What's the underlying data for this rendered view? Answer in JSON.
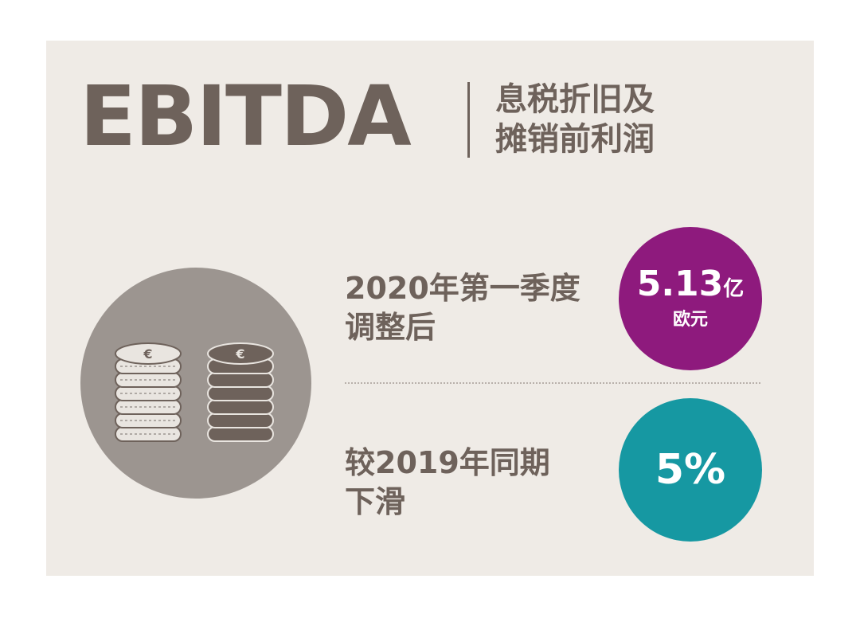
{
  "title": "EBITDA",
  "subtitle": {
    "line1": "息税折旧及",
    "line2": "摊销前利润"
  },
  "stat1": {
    "label_line1": "2020年第一季度",
    "label_line2": "调整后",
    "value": "5.13",
    "unit1": "亿",
    "unit2": "欧元"
  },
  "stat2": {
    "label_line1": "较2019年同期",
    "label_line2": "下滑",
    "value": "5%"
  },
  "icon": "euro-coin-stacks-icon",
  "colors": {
    "background": "#efebe6",
    "text": "#6e625b",
    "purple": "#8e1a7d",
    "teal": "#1698a2",
    "circle": "#9c9590"
  }
}
